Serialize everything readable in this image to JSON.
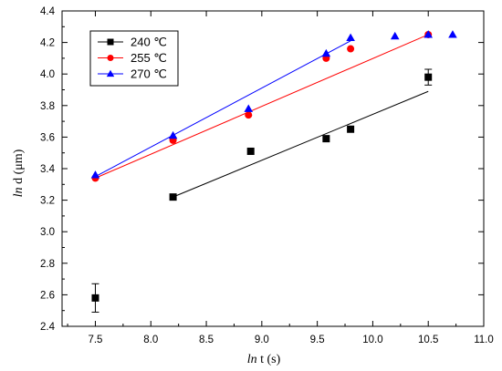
{
  "chart_data": {
    "type": "scatter",
    "xlabel_italic": "ln",
    "xlabel_rest": " t (s)",
    "ylabel_italic": "ln",
    "ylabel_rest": " d (μm)",
    "xlim": [
      7.2,
      11.0
    ],
    "ylim": [
      2.4,
      4.4
    ],
    "xticks": [
      "7.5",
      "8.0",
      "8.5",
      "9.0",
      "9.5",
      "10.0",
      "10.5",
      "11.0"
    ],
    "yticks": [
      "2.4",
      "2.6",
      "2.8",
      "3.0",
      "3.2",
      "3.4",
      "3.6",
      "3.8",
      "4.0",
      "4.2",
      "4.4"
    ],
    "legend_position": "top-left",
    "series": [
      {
        "name": "240 ℃",
        "color": "#000000",
        "marker": "square",
        "points": [
          [
            7.5,
            2.58
          ],
          [
            8.2,
            3.22
          ],
          [
            8.9,
            3.51
          ],
          [
            9.58,
            3.59
          ],
          [
            9.8,
            3.65
          ],
          [
            10.5,
            3.98
          ]
        ],
        "error_bars": [
          [
            7.5,
            0.09
          ],
          [
            10.5,
            0.05
          ]
        ],
        "fit": [
          [
            8.2,
            3.22
          ],
          [
            10.5,
            3.89
          ]
        ]
      },
      {
        "name": "255 ℃",
        "color": "#ff0000",
        "marker": "circle",
        "points": [
          [
            7.5,
            3.34
          ],
          [
            8.2,
            3.58
          ],
          [
            8.88,
            3.74
          ],
          [
            9.58,
            4.1
          ],
          [
            9.8,
            4.16
          ],
          [
            10.5,
            4.25
          ]
        ],
        "fit": [
          [
            7.5,
            3.34
          ],
          [
            10.5,
            4.25
          ]
        ]
      },
      {
        "name": "270 ℃",
        "color": "#0000ff",
        "marker": "triangle",
        "points": [
          [
            7.5,
            3.36
          ],
          [
            8.2,
            3.61
          ],
          [
            8.88,
            3.78
          ],
          [
            9.58,
            4.13
          ],
          [
            9.8,
            4.23
          ],
          [
            10.2,
            4.24
          ],
          [
            10.5,
            4.25
          ],
          [
            10.72,
            4.25
          ]
        ],
        "fit": [
          [
            7.5,
            3.35
          ],
          [
            9.8,
            4.21
          ]
        ]
      }
    ]
  }
}
